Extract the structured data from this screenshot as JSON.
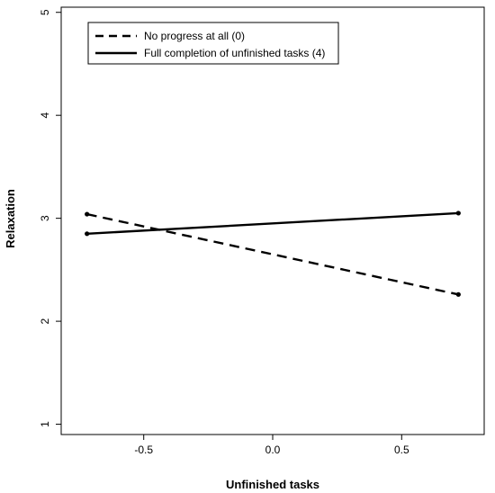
{
  "chart_data": {
    "type": "line",
    "xlabel": "Unfinished tasks",
    "ylabel": "Relaxation",
    "xlim": [
      -0.82,
      0.82
    ],
    "ylim": [
      0.9,
      5.05
    ],
    "xticks": [
      -0.5,
      0.0,
      0.5
    ],
    "xtick_labels": [
      "-0.5",
      "0.0",
      "0.5"
    ],
    "yticks": [
      1,
      2,
      3,
      4,
      5
    ],
    "ytick_labels": [
      "1",
      "2",
      "3",
      "4",
      "5"
    ],
    "grid": false,
    "legend_position": "top-left",
    "series": [
      {
        "name": "No progress at all (0)",
        "style": "dashed",
        "color": "#000000",
        "x": [
          -0.72,
          0.72
        ],
        "y": [
          3.04,
          2.26
        ]
      },
      {
        "name": "Full completion of unfinished tasks (4)",
        "style": "solid",
        "color": "#000000",
        "x": [
          -0.72,
          0.72
        ],
        "y": [
          2.85,
          3.05
        ]
      }
    ]
  }
}
